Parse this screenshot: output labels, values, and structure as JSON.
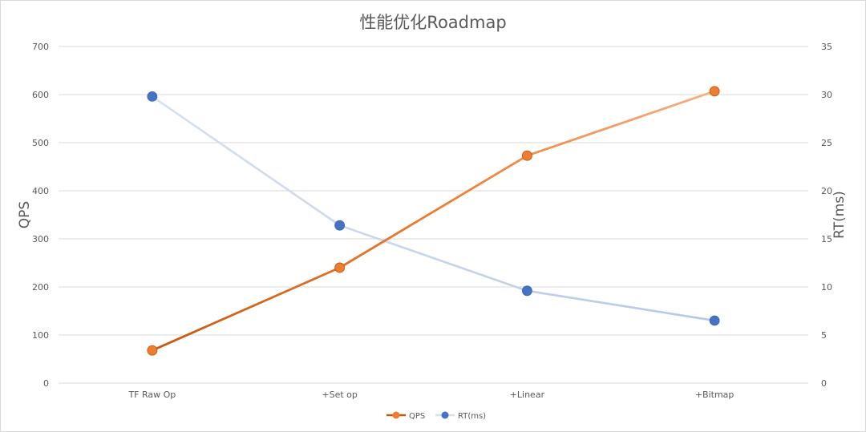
{
  "chart_data": {
    "type": "line",
    "title": "性能优化Roadmap",
    "categories": [
      "TF Raw Op",
      "+Set op",
      "+Linear",
      "+Bitmap"
    ],
    "series": [
      {
        "name": "QPS",
        "axis": "left",
        "values": [
          68,
          240,
          473,
          607
        ],
        "color": "#ed7d31"
      },
      {
        "name": "RT(ms)",
        "axis": "right",
        "values": [
          29.8,
          16.4,
          9.6,
          6.5
        ],
        "color": "#4472c4"
      }
    ],
    "ylabel": "QPS",
    "ylabel_right": "RT(ms)",
    "ylim": [
      0,
      700
    ],
    "ylim_right": [
      0,
      35
    ],
    "yticks": [
      0,
      100,
      200,
      300,
      400,
      500,
      600,
      700
    ],
    "yticks_right": [
      0,
      5,
      10,
      15,
      20,
      25,
      30,
      35
    ],
    "grid": true,
    "legend": "bottom",
    "colors": {
      "qps_dark": "#c55a11",
      "qps_light": "#f4b183",
      "rt_light": "#d6e0f0",
      "grid": "#d9d9d9",
      "text": "#595959"
    }
  }
}
